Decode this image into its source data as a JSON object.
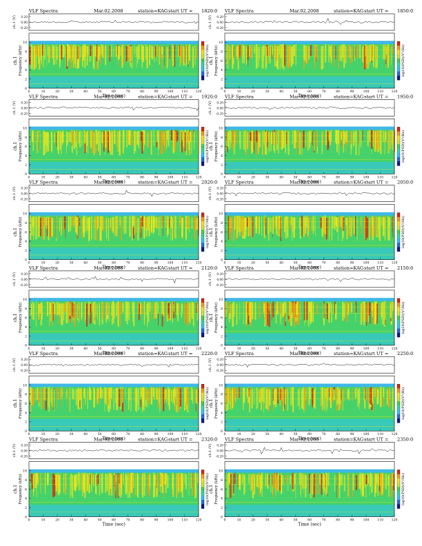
{
  "labels": {
    "title": "VLF Spectra",
    "date": "Mar.02.2008",
    "station": "station=KAG",
    "ut_prefix": "start  UT  =",
    "amp_label": "ch.1 (V)",
    "amp_ticks": [
      "0.20",
      "0.00",
      "-0.20"
    ],
    "ylabel_ch": "ch.1",
    "ylabel": "Frequency  (kHz)",
    "xlabel": "Time  (sec)",
    "colorbar_label": "log10(PSD)(V²/Hz)"
  },
  "chart_data": [
    {
      "type": "heatmap",
      "start_ut": "1820:0",
      "x": {
        "ticks": [
          0,
          10,
          20,
          30,
          40,
          50,
          60,
          70,
          80,
          90,
          100,
          110,
          120
        ],
        "range": [
          0,
          120
        ]
      },
      "y": {
        "ticks": [
          0,
          2,
          4,
          6,
          8,
          10
        ],
        "range": [
          0,
          12
        ]
      }
    },
    {
      "type": "heatmap",
      "start_ut": "1850:0",
      "x": {
        "ticks": [
          0,
          10,
          20,
          30,
          40,
          50,
          60,
          70,
          80,
          90,
          100,
          110,
          120
        ],
        "range": [
          0,
          120
        ]
      },
      "y": {
        "ticks": [
          0,
          2,
          4,
          6,
          8,
          10
        ],
        "range": [
          0,
          12
        ]
      }
    },
    {
      "type": "heatmap",
      "start_ut": "1920:0",
      "x": {
        "ticks": [
          0,
          10,
          20,
          30,
          40,
          50,
          60,
          70,
          80,
          90,
          100,
          110,
          120
        ],
        "range": [
          0,
          120
        ]
      },
      "y": {
        "ticks": [
          0,
          2,
          4,
          6,
          8,
          10
        ],
        "range": [
          0,
          12
        ]
      }
    },
    {
      "type": "heatmap",
      "start_ut": "1950:0",
      "x": {
        "ticks": [
          0,
          10,
          20,
          30,
          40,
          50,
          60,
          70,
          80,
          90,
          100,
          110,
          120
        ],
        "range": [
          0,
          120
        ]
      },
      "y": {
        "ticks": [
          0,
          2,
          4,
          6,
          8,
          10
        ],
        "range": [
          0,
          12
        ]
      }
    },
    {
      "type": "heatmap",
      "start_ut": "2020:0",
      "x": {
        "ticks": [
          0,
          10,
          20,
          30,
          40,
          50,
          60,
          70,
          80,
          90,
          100,
          110,
          120
        ],
        "range": [
          0,
          120
        ]
      },
      "y": {
        "ticks": [
          0,
          2,
          4,
          6,
          8,
          10
        ],
        "range": [
          0,
          12
        ]
      }
    },
    {
      "type": "heatmap",
      "start_ut": "2050:0",
      "x": {
        "ticks": [
          0,
          10,
          20,
          30,
          40,
          50,
          60,
          70,
          80,
          90,
          100,
          110,
          120
        ],
        "range": [
          0,
          120
        ]
      },
      "y": {
        "ticks": [
          0,
          2,
          4,
          6,
          8,
          10
        ],
        "range": [
          0,
          12
        ]
      }
    },
    {
      "type": "heatmap",
      "start_ut": "2120:0",
      "x": {
        "ticks": [
          0,
          10,
          20,
          30,
          40,
          50,
          60,
          70,
          80,
          90,
          100,
          110,
          120
        ],
        "range": [
          0,
          120
        ]
      },
      "y": {
        "ticks": [
          0,
          2,
          4,
          6,
          8,
          10
        ],
        "range": [
          0,
          12
        ]
      }
    },
    {
      "type": "heatmap",
      "start_ut": "2150:0",
      "x": {
        "ticks": [
          0,
          10,
          20,
          30,
          40,
          50,
          60,
          70,
          80,
          90,
          100,
          110,
          120
        ],
        "range": [
          0,
          120
        ]
      },
      "y": {
        "ticks": [
          0,
          2,
          4,
          6,
          8,
          10
        ],
        "range": [
          0,
          12
        ]
      }
    },
    {
      "type": "heatmap",
      "start_ut": "2220:0",
      "x": {
        "ticks": [
          0,
          10,
          20,
          30,
          40,
          50,
          60,
          70,
          80,
          90,
          100,
          110,
          120
        ],
        "range": [
          0,
          120
        ]
      },
      "y": {
        "ticks": [
          0,
          2,
          4,
          6,
          8,
          10
        ],
        "range": [
          0,
          12
        ]
      }
    },
    {
      "type": "heatmap",
      "start_ut": "2250:0",
      "x": {
        "ticks": [
          0,
          10,
          20,
          30,
          40,
          50,
          60,
          70,
          80,
          90,
          100,
          110,
          120
        ],
        "range": [
          0,
          120
        ]
      },
      "y": {
        "ticks": [
          0,
          2,
          4,
          6,
          8,
          10
        ],
        "range": [
          0,
          12
        ]
      }
    },
    {
      "type": "heatmap",
      "start_ut": "2320:0",
      "x": {
        "ticks": [
          0,
          10,
          20,
          30,
          40,
          50,
          60,
          70,
          80,
          90,
          100,
          110,
          120
        ],
        "range": [
          0,
          120
        ]
      },
      "y": {
        "ticks": [
          0,
          2,
          4,
          6,
          8,
          10
        ],
        "range": [
          0,
          12
        ]
      }
    },
    {
      "type": "heatmap",
      "start_ut": "2350:0",
      "x": {
        "ticks": [
          0,
          10,
          20,
          30,
          40,
          50,
          60,
          70,
          80,
          90,
          100,
          110,
          120
        ],
        "range": [
          0,
          120
        ]
      },
      "y": {
        "ticks": [
          0,
          2,
          4,
          6,
          8,
          10
        ],
        "range": [
          0,
          12
        ]
      }
    }
  ],
  "colors": {
    "colormap": [
      "#0a1a8c",
      "#1f6fe6",
      "#2fc4f2",
      "#2ed9a6",
      "#3fd24a",
      "#c9e62e",
      "#f2e416",
      "#f0a010",
      "#d8280c"
    ],
    "band_high": "#3fb8e8",
    "band_green": "#46d26b"
  }
}
